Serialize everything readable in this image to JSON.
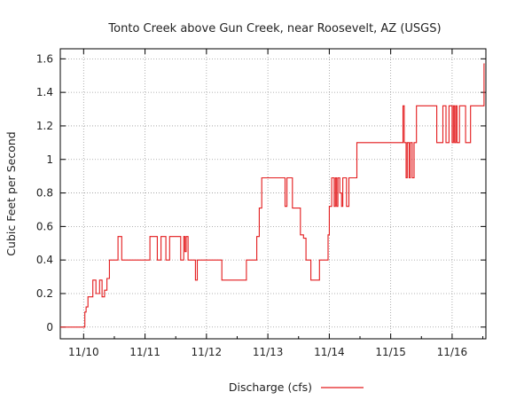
{
  "chart_data": {
    "type": "line",
    "title": "Tonto Creek above Gun Creek, near Roosevelt, AZ (USGS)",
    "xlabel": "",
    "ylabel": "Cubic Feet per Second",
    "x_tick_labels": [
      "11/10",
      "11/11",
      "11/12",
      "11/13",
      "11/14",
      "11/15",
      "11/16"
    ],
    "y_tick_labels": [
      "0",
      "0.2",
      "0.4",
      "0.6",
      "0.8",
      "1",
      "1.2",
      "1.4",
      "1.6"
    ],
    "y_ticks": [
      0,
      0.2,
      0.4,
      0.6,
      0.8,
      1.0,
      1.2,
      1.4,
      1.6
    ],
    "xlim_days": [
      9.62,
      16.55
    ],
    "ylim": [
      -0.07,
      1.66
    ],
    "grid": true,
    "legend_position": "bottom-center",
    "series": [
      {
        "name": "Discharge (cfs)",
        "color": "#e31a1c",
        "step": true,
        "x_day": [
          9.62,
          10.02,
          10.04,
          10.07,
          10.1,
          10.15,
          10.2,
          10.26,
          10.3,
          10.34,
          10.38,
          10.42,
          10.56,
          10.62,
          10.74,
          10.92,
          11.08,
          11.2,
          11.26,
          11.34,
          11.4,
          11.58,
          11.63,
          11.65,
          11.67,
          11.7,
          11.74,
          11.82,
          11.85,
          12.25,
          12.28,
          12.48,
          12.65,
          12.82,
          12.86,
          12.9,
          13.0,
          13.28,
          13.31,
          13.4,
          13.48,
          13.53,
          13.58,
          13.6,
          13.62,
          13.7,
          13.72,
          13.8,
          13.84,
          13.98,
          14.0,
          14.02,
          14.04,
          14.08,
          14.1,
          14.12,
          14.14,
          14.17,
          14.2,
          14.22,
          14.28,
          14.32,
          14.35,
          14.45,
          14.5,
          14.95,
          15.2,
          15.22,
          15.25,
          15.27,
          15.3,
          15.32,
          15.35,
          15.38,
          15.4,
          15.42,
          15.45,
          15.5,
          15.75,
          15.85,
          15.87,
          15.9,
          15.95,
          16.0,
          16.02,
          16.04,
          16.06,
          16.08,
          16.12,
          16.16,
          16.22,
          16.28,
          16.3,
          16.33,
          16.36,
          16.52,
          16.53
        ],
        "y": [
          0.0,
          0.09,
          0.12,
          0.18,
          0.18,
          0.28,
          0.2,
          0.28,
          0.18,
          0.22,
          0.29,
          0.4,
          0.54,
          0.4,
          0.4,
          0.4,
          0.54,
          0.4,
          0.54,
          0.4,
          0.54,
          0.4,
          0.54,
          0.45,
          0.54,
          0.4,
          0.4,
          0.28,
          0.4,
          0.28,
          0.28,
          0.28,
          0.4,
          0.54,
          0.71,
          0.89,
          0.89,
          0.72,
          0.89,
          0.71,
          0.71,
          0.55,
          0.53,
          0.53,
          0.4,
          0.28,
          0.28,
          0.28,
          0.4,
          0.55,
          0.72,
          0.72,
          0.89,
          0.72,
          0.89,
          0.72,
          0.89,
          0.8,
          0.72,
          0.89,
          0.72,
          0.89,
          0.89,
          1.1,
          1.1,
          1.1,
          1.32,
          1.1,
          0.89,
          1.1,
          0.89,
          1.1,
          0.89,
          1.1,
          1.1,
          1.32,
          1.32,
          1.32,
          1.1,
          1.32,
          1.32,
          1.1,
          1.32,
          1.1,
          1.32,
          1.1,
          1.32,
          1.1,
          1.32,
          1.32,
          1.1,
          1.1,
          1.32,
          1.32,
          1.32,
          1.57,
          1.57
        ]
      }
    ]
  }
}
